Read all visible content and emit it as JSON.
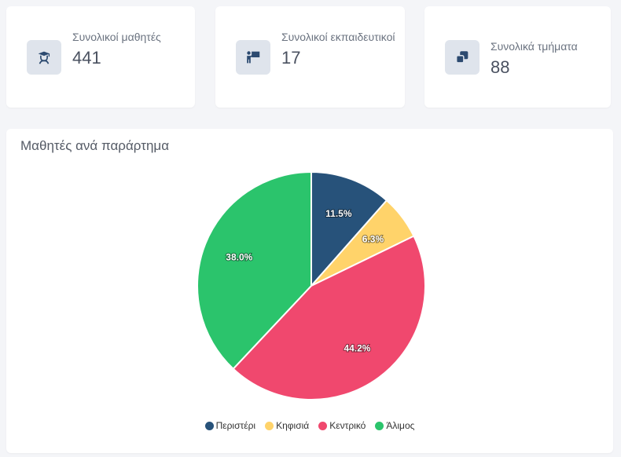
{
  "stats": [
    {
      "label": "Συνολικοί μαθητές",
      "value": "441",
      "icon": "graduation-cap-student-icon"
    },
    {
      "label": "Συνολικοί εκπαιδευτικοί",
      "value": "17",
      "icon": "teacher-board-icon"
    },
    {
      "label": "Συνολικά τμήματα",
      "value": "88",
      "icon": "stacked-squares-icon"
    }
  ],
  "colors": {
    "icon": "#2c4a70",
    "pie_border": "#ffffff"
  },
  "chart_title": "Μαθητές ανά παράρτημα",
  "chart_data": {
    "type": "pie",
    "title": "Μαθητές ανά παράρτημα",
    "legend_position": "bottom",
    "categories": [
      "Περιστέρι",
      "Κηφισιά",
      "Κεντρικό",
      "Άλιμος"
    ],
    "values": [
      11.5,
      6.3,
      44.2,
      38.0
    ],
    "labels": [
      "11.5%",
      "6.3%",
      "44.2%",
      "38.0%"
    ],
    "colors": [
      "#27527a",
      "#ffd36a",
      "#f0486e",
      "#2bc46c"
    ]
  }
}
